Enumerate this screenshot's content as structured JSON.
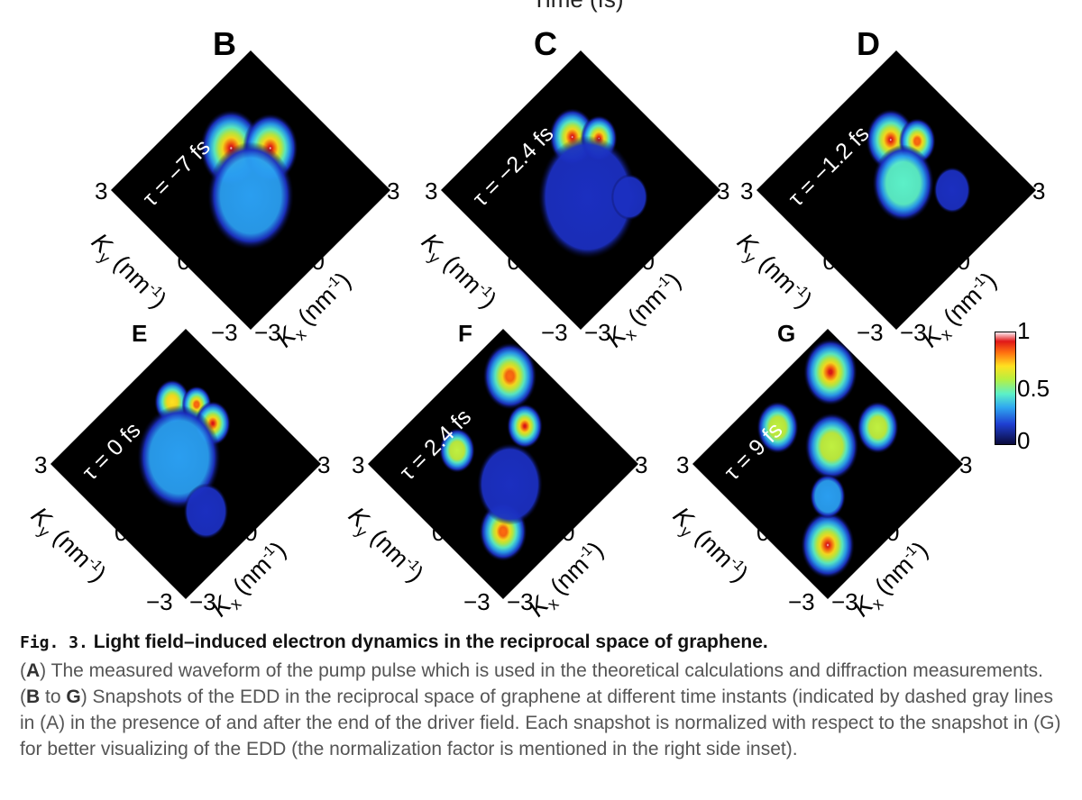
{
  "top_partial_label": "Time (fs)",
  "panels": [
    {
      "letter": "B",
      "tau": "τ = −7 fs",
      "ky_top": "3",
      "ky_mid": "0",
      "ky_bottom": "−3",
      "kx_top": "3",
      "kx_mid": "0",
      "kx_bottom": "−3",
      "ky_label": "K",
      "ky_sub": "y",
      "ky_unit": "(nm",
      "ky_exp": "-1",
      "ky_close": ")",
      "kx_label": "K",
      "kx_sub": "x",
      "kx_unit": "(nm",
      "kx_exp": "-1",
      "kx_close": ")"
    },
    {
      "letter": "C",
      "tau": "τ = −2.4 fs",
      "ky_top": "3",
      "ky_mid": "0",
      "ky_bottom": "−3",
      "kx_top": "3",
      "kx_mid": "0",
      "kx_bottom": "−3",
      "ky_label": "K",
      "ky_sub": "y",
      "ky_unit": "(nm",
      "ky_exp": "-1",
      "ky_close": ")",
      "kx_label": "K",
      "kx_sub": "x",
      "kx_unit": "(nm",
      "kx_exp": "-1",
      "kx_close": ")"
    },
    {
      "letter": "D",
      "tau": "τ = −1.2 fs",
      "ky_top": "3",
      "ky_mid": "0",
      "ky_bottom": "−3",
      "kx_top": "3",
      "kx_mid": "0",
      "kx_bottom": "−3",
      "ky_label": "K",
      "ky_sub": "y",
      "ky_unit": "(nm",
      "ky_exp": "-1",
      "ky_close": ")",
      "kx_label": "K",
      "kx_sub": "x",
      "kx_unit": "(nm",
      "kx_exp": "-1",
      "kx_close": ")"
    },
    {
      "letter": "E",
      "tau": "τ = 0 fs",
      "ky_top": "3",
      "ky_mid": "0",
      "ky_bottom": "−3",
      "kx_top": "3",
      "kx_mid": "0",
      "kx_bottom": "−3",
      "ky_label": "K",
      "ky_sub": "y",
      "ky_unit": "(nm",
      "ky_exp": "-1",
      "ky_close": ")",
      "kx_label": "K",
      "kx_sub": "x",
      "kx_unit": "(nm",
      "kx_exp": "-1",
      "kx_close": ")"
    },
    {
      "letter": "F",
      "tau": "τ = 2.4 fs",
      "ky_top": "3",
      "ky_mid": "0",
      "ky_bottom": "−3",
      "kx_top": "3",
      "kx_mid": "0",
      "kx_bottom": "−3",
      "ky_label": "K",
      "ky_sub": "y",
      "ky_unit": "(nm",
      "ky_exp": "-1",
      "ky_close": ")",
      "kx_label": "K",
      "kx_sub": "x",
      "kx_unit": "(nm",
      "kx_exp": "-1",
      "kx_close": ")"
    },
    {
      "letter": "G",
      "tau": "τ = 9 fs",
      "ky_top": "3",
      "ky_mid": "0",
      "ky_bottom": "−3",
      "kx_top": "3",
      "kx_mid": "0",
      "kx_bottom": "−3",
      "ky_label": "K",
      "ky_sub": "y",
      "ky_unit": "(nm",
      "ky_exp": "-1",
      "ky_close": ")",
      "kx_label": "K",
      "kx_sub": "x",
      "kx_unit": "(nm",
      "kx_exp": "-1",
      "kx_close": ")"
    }
  ],
  "colorbar": {
    "tick_top": "1",
    "tick_mid": "0.5",
    "tick_bottom": "0"
  },
  "caption": {
    "fig_label": "Fig. 3.",
    "title": "Light field–induced electron dynamics in the reciprocal space of graphene.",
    "a_open": "(",
    "a_letter": "A",
    "a_close": ")",
    "a_text": " The measured waveform of the pump pulse which is used in the theoretical calculations and diffraction measurements. ",
    "bg_open": "(",
    "b_letter": "B",
    "to_text": " to ",
    "g_letter": "G",
    "bg_close": ")",
    "bg_text": " Snapshots of the EDD in the reciprocal space of graphene at different time instants (indicated by dashed gray lines in (A) in the presence of and after the end of the driver field. Each snapshot is normalized with respect to the snapshot in (G) for better visualizing of the EDD (the normalization factor is mentioned in the right side inset)."
  }
}
